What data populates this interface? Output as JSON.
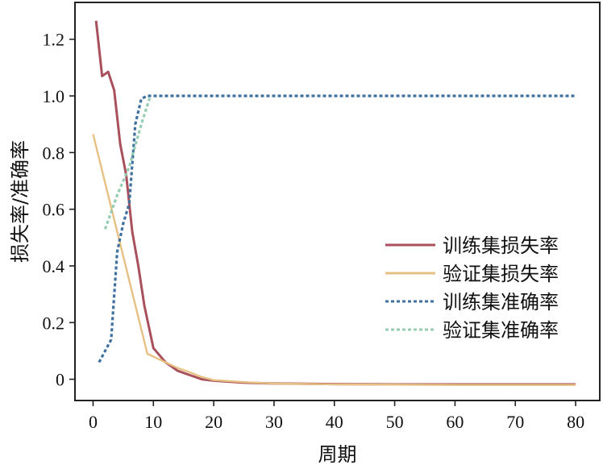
{
  "chart_data": {
    "type": "line",
    "title": "",
    "xlabel": "周期",
    "ylabel": "损失率/准确率",
    "xlim": [
      -3,
      84
    ],
    "ylim": [
      -0.075,
      1.33
    ],
    "xticks": [
      0,
      10,
      20,
      30,
      40,
      50,
      60,
      70,
      80
    ],
    "yticks": [
      0,
      0.2,
      0.4,
      0.6,
      0.8,
      1.0,
      1.2
    ],
    "ytick_labels": [
      "0",
      "0.2",
      "0.4",
      "0.6",
      "0.8",
      "1.0",
      "1.2"
    ],
    "grid": false,
    "legend_position": "right",
    "series": [
      {
        "name": "训练集损失率",
        "color": "#a8505c",
        "dash": "solid",
        "points": [
          [
            0.5,
            1.265
          ],
          [
            1.5,
            1.07
          ],
          [
            2.5,
            1.085
          ],
          [
            3.5,
            1.02
          ],
          [
            4.5,
            0.83
          ],
          [
            5.5,
            0.72
          ],
          [
            6.5,
            0.52
          ],
          [
            7.5,
            0.4
          ],
          [
            8.5,
            0.26
          ],
          [
            10,
            0.11
          ],
          [
            12,
            0.06
          ],
          [
            14,
            0.03
          ],
          [
            16,
            0.015
          ],
          [
            18,
            0.0
          ],
          [
            20,
            -0.005
          ],
          [
            25,
            -0.012
          ],
          [
            30,
            -0.015
          ],
          [
            40,
            -0.017
          ],
          [
            50,
            -0.018
          ],
          [
            60,
            -0.018
          ],
          [
            70,
            -0.018
          ],
          [
            80,
            -0.018
          ]
        ]
      },
      {
        "name": "验证集损失率",
        "color": "#e7c083",
        "dash": "solid",
        "points": [
          [
            0,
            0.865
          ],
          [
            9,
            0.09
          ],
          [
            12,
            0.06
          ],
          [
            14,
            0.04
          ],
          [
            16,
            0.025
          ],
          [
            18,
            0.008
          ],
          [
            20,
            -0.003
          ],
          [
            25,
            -0.01
          ],
          [
            30,
            -0.015
          ],
          [
            40,
            -0.018
          ],
          [
            50,
            -0.019
          ],
          [
            60,
            -0.02
          ],
          [
            70,
            -0.02
          ],
          [
            80,
            -0.02
          ]
        ]
      },
      {
        "name": "训练集准确率",
        "color": "#3e71a0",
        "dash": "dotted",
        "points": [
          [
            1,
            0.06
          ],
          [
            2,
            0.1
          ],
          [
            3,
            0.14
          ],
          [
            4,
            0.45
          ],
          [
            5,
            0.55
          ],
          [
            6,
            0.62
          ],
          [
            7,
            0.9
          ],
          [
            8,
            0.99
          ],
          [
            9,
            1.0
          ],
          [
            10,
            1.0
          ],
          [
            20,
            1.0
          ],
          [
            40,
            1.0
          ],
          [
            60,
            1.0
          ],
          [
            80,
            1.0
          ]
        ]
      },
      {
        "name": "验证集准确率",
        "color": "#95cdb3",
        "dash": "dotted",
        "points": [
          [
            2,
            0.53
          ],
          [
            4,
            0.65
          ],
          [
            6,
            0.75
          ],
          [
            8,
            0.9
          ],
          [
            9.5,
            1.0
          ]
        ]
      }
    ]
  }
}
